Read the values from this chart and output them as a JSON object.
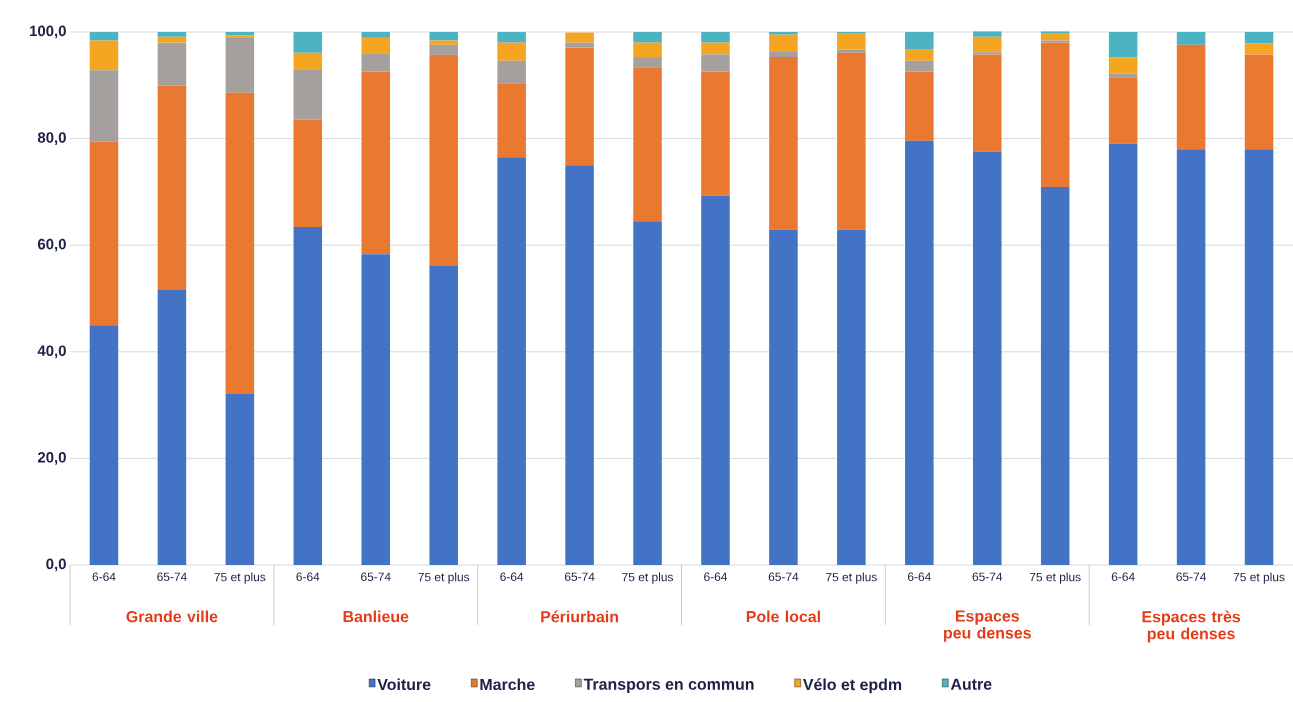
{
  "chart_data": {
    "type": "bar",
    "stacked": true,
    "categories": [
      "6-64",
      "65-74",
      "75 et plus",
      "6-64",
      "65-74",
      "75 et plus",
      "6-64",
      "65-74",
      "75 et plus",
      "6-64",
      "65-74",
      "75 et plus",
      "6-64",
      "65-74",
      "75 et plus",
      "6-64",
      "65-74",
      "75 et plus"
    ],
    "series": [
      {
        "name": "Voiture",
        "color": "#4472c4",
        "values": [
          45.0,
          51.6,
          32.1,
          63.4,
          58.3,
          56.1,
          76.5,
          75.0,
          64.5,
          69.3,
          62.9,
          62.9,
          79.6,
          77.6,
          70.9,
          79.1,
          78.0,
          78.0
        ]
      },
      {
        "name": "Marche",
        "color": "#e97830",
        "values": [
          34.4,
          38.3,
          56.5,
          20.2,
          34.3,
          39.6,
          13.9,
          22.1,
          28.9,
          23.3,
          32.4,
          33.2,
          13.0,
          18.2,
          27.1,
          12.3,
          19.6,
          17.8
        ]
      },
      {
        "name": "Transpors en commun",
        "color": "#a5a09e",
        "values": [
          13.4,
          8.1,
          10.4,
          9.3,
          3.3,
          1.9,
          4.2,
          0.9,
          1.9,
          3.2,
          1.1,
          0.6,
          2.0,
          0.4,
          0.4,
          0.8,
          0,
          0
        ]
      },
      {
        "name": "Vélo et epdm",
        "color": "#f4a622",
        "values": [
          5.6,
          1.1,
          0.4,
          3.2,
          3.0,
          0.8,
          3.4,
          1.9,
          2.7,
          2.2,
          3.1,
          3.1,
          2.2,
          2.9,
          1.4,
          3.0,
          0,
          2.1
        ]
      },
      {
        "name": "Autre",
        "color": "#4bb3c1",
        "values": [
          1.6,
          0.9,
          0.6,
          3.9,
          1.1,
          1.6,
          2.0,
          null,
          2.0,
          2.0,
          0.5,
          0.2,
          3.2,
          1.0,
          0.3,
          4.8,
          2.4,
          2.1
        ]
      }
    ],
    "ylim": [
      0,
      100
    ],
    "yticks": [
      {
        "value": 0,
        "label": "0,0"
      },
      {
        "value": 20,
        "label": "20,0"
      },
      {
        "value": 40,
        "label": "40,0"
      },
      {
        "value": 60,
        "label": "60,0"
      },
      {
        "value": 80,
        "label": "80,0"
      },
      {
        "value": 100,
        "label": "100,0"
      }
    ],
    "grid": "y",
    "legend": "bottom",
    "annotations": [
      "Grande ville",
      "Banlieue",
      "Périurbain",
      "Pole local",
      "Espaces peu denses",
      "Espaces très peu denses"
    ]
  }
}
